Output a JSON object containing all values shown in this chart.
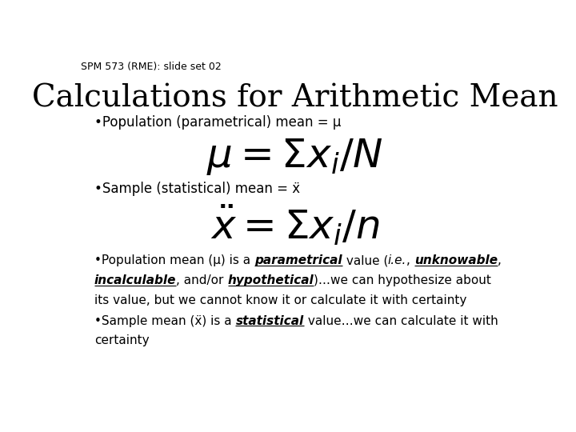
{
  "background_color": "#ffffff",
  "slide_label": "SPM 573 (RME): slide set 02",
  "slide_label_fontsize": 9,
  "title": "Calculations for Arithmetic Mean",
  "title_fontsize": 28,
  "bullet1": "•Population (parametrical) mean = μ",
  "bullet1_fontsize": 12,
  "bullet2_text": "•Sample (statistical) mean = ẍ",
  "bullet2_fontsize": 12,
  "formula1_fontsize": 36,
  "formula2_fontsize": 36,
  "text_fontsize": 11
}
